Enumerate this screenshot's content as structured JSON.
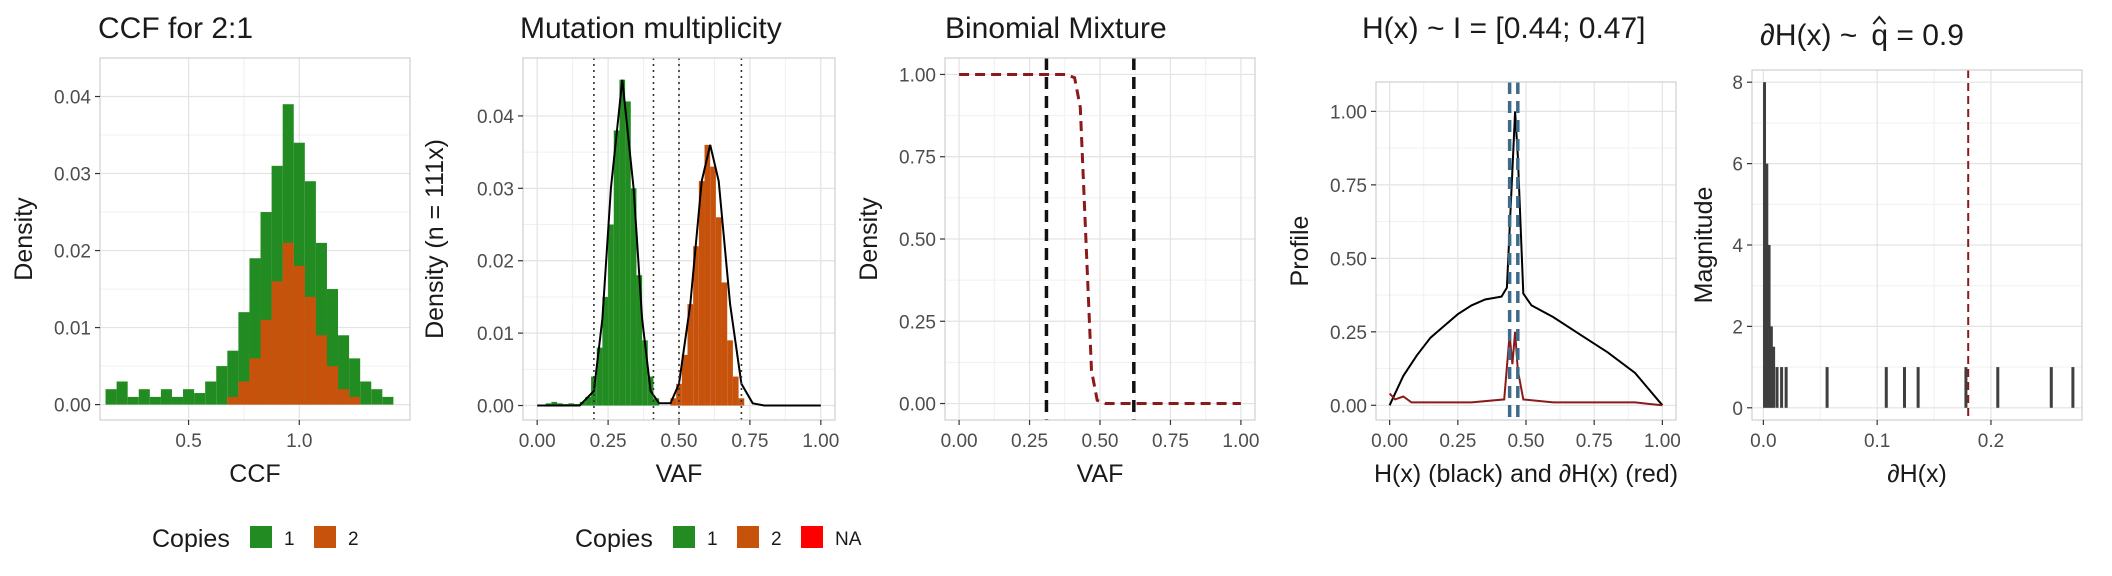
{
  "chart_data": [
    {
      "type": "histogram",
      "title": "CCF for 2:1",
      "xlabel": "CCF",
      "ylabel": "Density",
      "xlim": [
        0.1,
        1.5
      ],
      "ylim": [
        -0.002,
        0.045
      ],
      "xticks": [
        0.5,
        1.0
      ],
      "xtick_labels": [
        "0.5",
        "1.0"
      ],
      "yticks": [
        0,
        0.01,
        0.02,
        0.03,
        0.04
      ],
      "ytick_labels": [
        "0.00",
        "0.01",
        "0.02",
        "0.03",
        "0.04"
      ],
      "grid": true,
      "legend": {
        "title": "Copies",
        "position": "bottom",
        "entries": [
          "1",
          "2"
        ]
      },
      "series": [
        {
          "name": "1",
          "color": "#228B22",
          "bins": [
            {
              "x": 0.15,
              "y": 0.002
            },
            {
              "x": 0.2,
              "y": 0.003
            },
            {
              "x": 0.25,
              "y": 0.001
            },
            {
              "x": 0.3,
              "y": 0.002
            },
            {
              "x": 0.35,
              "y": 0.001
            },
            {
              "x": 0.4,
              "y": 0.002
            },
            {
              "x": 0.45,
              "y": 0.001
            },
            {
              "x": 0.5,
              "y": 0.002
            },
            {
              "x": 0.55,
              "y": 0.0015
            },
            {
              "x": 0.6,
              "y": 0.003
            },
            {
              "x": 0.65,
              "y": 0.005
            },
            {
              "x": 0.7,
              "y": 0.007
            },
            {
              "x": 0.75,
              "y": 0.012
            },
            {
              "x": 0.8,
              "y": 0.019
            },
            {
              "x": 0.85,
              "y": 0.025
            },
            {
              "x": 0.9,
              "y": 0.031
            },
            {
              "x": 0.95,
              "y": 0.039
            },
            {
              "x": 1.0,
              "y": 0.034
            },
            {
              "x": 1.05,
              "y": 0.029
            },
            {
              "x": 1.1,
              "y": 0.021
            },
            {
              "x": 1.15,
              "y": 0.015
            },
            {
              "x": 1.2,
              "y": 0.009
            },
            {
              "x": 1.25,
              "y": 0.006
            },
            {
              "x": 1.3,
              "y": 0.003
            },
            {
              "x": 1.35,
              "y": 0.002
            },
            {
              "x": 1.4,
              "y": 0.001
            }
          ]
        },
        {
          "name": "2",
          "color": "#C6520B",
          "bins": [
            {
              "x": 0.7,
              "y": 0.001
            },
            {
              "x": 0.75,
              "y": 0.003
            },
            {
              "x": 0.8,
              "y": 0.006
            },
            {
              "x": 0.85,
              "y": 0.011
            },
            {
              "x": 0.9,
              "y": 0.016
            },
            {
              "x": 0.95,
              "y": 0.021
            },
            {
              "x": 1.0,
              "y": 0.018
            },
            {
              "x": 1.05,
              "y": 0.014
            },
            {
              "x": 1.1,
              "y": 0.009
            },
            {
              "x": 1.15,
              "y": 0.005
            },
            {
              "x": 1.2,
              "y": 0.002
            },
            {
              "x": 1.25,
              "y": 0.001
            }
          ]
        }
      ]
    },
    {
      "type": "histogram",
      "title": "Mutation multiplicity",
      "xlabel": "VAF",
      "ylabel": "Density (n = 111x)",
      "xlim": [
        -0.05,
        1.05
      ],
      "ylim": [
        -0.002,
        0.048
      ],
      "xticks": [
        0,
        0.25,
        0.5,
        0.75,
        1.0
      ],
      "xtick_labels": [
        "0.00",
        "0.25",
        "0.50",
        "0.75",
        "1.00"
      ],
      "yticks": [
        0,
        0.01,
        0.02,
        0.03,
        0.04
      ],
      "ytick_labels": [
        "0.00",
        "0.01",
        "0.02",
        "0.03",
        "0.04"
      ],
      "grid": true,
      "vlines_dotted": [
        0.2,
        0.41,
        0.5,
        0.72
      ],
      "legend": {
        "title": "Copies",
        "position": "bottom",
        "entries": [
          "1",
          "2",
          "NA"
        ],
        "colors": [
          "#228B22",
          "#C6520B",
          "#FF0000"
        ]
      },
      "series": [
        {
          "name": "1",
          "color": "#228B22",
          "bins": [
            {
              "x": 0.04,
              "y": 0.0003
            },
            {
              "x": 0.06,
              "y": 0.0005
            },
            {
              "x": 0.08,
              "y": 0.0003
            },
            {
              "x": 0.1,
              "y": 0.0002
            },
            {
              "x": 0.12,
              "y": 0.0003
            },
            {
              "x": 0.14,
              "y": 0.0002
            },
            {
              "x": 0.16,
              "y": 0.0005
            },
            {
              "x": 0.18,
              "y": 0.0012
            },
            {
              "x": 0.2,
              "y": 0.004
            },
            {
              "x": 0.22,
              "y": 0.008
            },
            {
              "x": 0.24,
              "y": 0.015
            },
            {
              "x": 0.26,
              "y": 0.025
            },
            {
              "x": 0.28,
              "y": 0.038
            },
            {
              "x": 0.3,
              "y": 0.045
            },
            {
              "x": 0.32,
              "y": 0.042
            },
            {
              "x": 0.34,
              "y": 0.03
            },
            {
              "x": 0.36,
              "y": 0.018
            },
            {
              "x": 0.38,
              "y": 0.009
            },
            {
              "x": 0.4,
              "y": 0.004
            },
            {
              "x": 0.42,
              "y": 0.001
            }
          ]
        },
        {
          "name": "2",
          "color": "#C6520B",
          "bins": [
            {
              "x": 0.48,
              "y": 0.001
            },
            {
              "x": 0.5,
              "y": 0.003
            },
            {
              "x": 0.52,
              "y": 0.007
            },
            {
              "x": 0.54,
              "y": 0.014
            },
            {
              "x": 0.56,
              "y": 0.022
            },
            {
              "x": 0.58,
              "y": 0.031
            },
            {
              "x": 0.6,
              "y": 0.036
            },
            {
              "x": 0.62,
              "y": 0.033
            },
            {
              "x": 0.64,
              "y": 0.026
            },
            {
              "x": 0.66,
              "y": 0.017
            },
            {
              "x": 0.68,
              "y": 0.009
            },
            {
              "x": 0.7,
              "y": 0.004
            },
            {
              "x": 0.72,
              "y": 0.001
            }
          ]
        }
      ],
      "curve": {
        "color": "#000000",
        "points": [
          [
            0.0,
            0.0
          ],
          [
            0.15,
            0.0
          ],
          [
            0.2,
            0.002
          ],
          [
            0.23,
            0.012
          ],
          [
            0.26,
            0.03
          ],
          [
            0.3,
            0.045
          ],
          [
            0.34,
            0.03
          ],
          [
            0.37,
            0.012
          ],
          [
            0.4,
            0.002
          ],
          [
            0.43,
            0.0003
          ],
          [
            0.47,
            0.0003
          ],
          [
            0.5,
            0.003
          ],
          [
            0.54,
            0.014
          ],
          [
            0.58,
            0.031
          ],
          [
            0.61,
            0.036
          ],
          [
            0.64,
            0.031
          ],
          [
            0.68,
            0.014
          ],
          [
            0.72,
            0.003
          ],
          [
            0.76,
            0.0003
          ],
          [
            0.8,
            0.0
          ],
          [
            1.0,
            0.0
          ]
        ]
      }
    },
    {
      "type": "line",
      "title": "Binomial Mixture",
      "xlabel": "VAF",
      "ylabel": "Density",
      "xlim": [
        -0.05,
        1.05
      ],
      "ylim": [
        -0.05,
        1.05
      ],
      "xticks": [
        0,
        0.25,
        0.5,
        0.75,
        1.0
      ],
      "xtick_labels": [
        "0.00",
        "0.25",
        "0.50",
        "0.75",
        "1.00"
      ],
      "yticks": [
        0,
        0.25,
        0.5,
        0.75,
        1.0
      ],
      "ytick_labels": [
        "0.00",
        "0.25",
        "0.50",
        "0.75",
        "1.00"
      ],
      "grid": true,
      "vlines_dashed": [
        0.31,
        0.62
      ],
      "curve": {
        "color": "#8B1A1A",
        "dashed": true,
        "points": [
          [
            0.0,
            1.0
          ],
          [
            0.3,
            1.0
          ],
          [
            0.38,
            1.0
          ],
          [
            0.41,
            0.99
          ],
          [
            0.43,
            0.9
          ],
          [
            0.45,
            0.5
          ],
          [
            0.47,
            0.1
          ],
          [
            0.49,
            0.01
          ],
          [
            0.52,
            0.0
          ],
          [
            1.0,
            0.0
          ]
        ]
      }
    },
    {
      "type": "line",
      "title": "H(x) ~ I = [0.44; 0.47]",
      "xlabel": "H(x) (black) and ∂H(x) (red)",
      "ylabel": "Profile",
      "xlim": [
        -0.05,
        1.05
      ],
      "ylim": [
        -0.05,
        1.1
      ],
      "xticks": [
        0,
        0.25,
        0.5,
        0.75,
        1.0
      ],
      "xtick_labels": [
        "0.00",
        "0.25",
        "0.50",
        "0.75",
        "1.00"
      ],
      "yticks": [
        0,
        0.25,
        0.5,
        0.75,
        1.0
      ],
      "ytick_labels": [
        "0.00",
        "0.25",
        "0.50",
        "0.75",
        "1.00"
      ],
      "grid": true,
      "vlines_dashed": [
        0.44,
        0.47
      ],
      "vline_color": "#3E6B8A",
      "series": [
        {
          "name": "H(x)",
          "color": "#000000",
          "points": [
            [
              0.0,
              0.0
            ],
            [
              0.05,
              0.1
            ],
            [
              0.1,
              0.17
            ],
            [
              0.15,
              0.23
            ],
            [
              0.2,
              0.27
            ],
            [
              0.25,
              0.31
            ],
            [
              0.3,
              0.34
            ],
            [
              0.35,
              0.36
            ],
            [
              0.41,
              0.37
            ],
            [
              0.43,
              0.4
            ],
            [
              0.45,
              0.8
            ],
            [
              0.46,
              1.0
            ],
            [
              0.47,
              0.85
            ],
            [
              0.49,
              0.38
            ],
            [
              0.52,
              0.34
            ],
            [
              0.6,
              0.3
            ],
            [
              0.7,
              0.24
            ],
            [
              0.8,
              0.18
            ],
            [
              0.9,
              0.11
            ],
            [
              1.0,
              0.0
            ]
          ]
        },
        {
          "name": "∂H(x)",
          "color": "#8B1A1A",
          "points": [
            [
              0.0,
              0.04
            ],
            [
              0.02,
              0.02
            ],
            [
              0.05,
              0.03
            ],
            [
              0.08,
              0.01
            ],
            [
              0.15,
              0.01
            ],
            [
              0.3,
              0.01
            ],
            [
              0.42,
              0.02
            ],
            [
              0.44,
              0.24
            ],
            [
              0.45,
              0.14
            ],
            [
              0.46,
              0.25
            ],
            [
              0.47,
              0.12
            ],
            [
              0.49,
              0.02
            ],
            [
              0.6,
              0.01
            ],
            [
              0.8,
              0.01
            ],
            [
              0.9,
              0.01
            ],
            [
              1.0,
              0.0
            ]
          ]
        }
      ]
    },
    {
      "type": "histogram",
      "title": "∂H(x) ~",
      "title_suffix": "q = 0.9",
      "xlabel": "∂H(x)",
      "ylabel": "Magnitude",
      "xlim": [
        -0.01,
        0.28
      ],
      "ylim": [
        -0.3,
        8.3
      ],
      "xticks": [
        0,
        0.1,
        0.2
      ],
      "xtick_labels": [
        "0.0",
        "0.1",
        "0.2"
      ],
      "yticks": [
        0,
        2,
        4,
        6,
        8
      ],
      "ytick_labels": [
        "0",
        "2",
        "4",
        "6",
        "8"
      ],
      "grid": true,
      "vline_dashed": 0.18,
      "vline_color": "#8B1A1A",
      "bars": [
        {
          "x": 0.001,
          "y": 8
        },
        {
          "x": 0.003,
          "y": 6
        },
        {
          "x": 0.005,
          "y": 4
        },
        {
          "x": 0.007,
          "y": 2
        },
        {
          "x": 0.009,
          "y": 1.5
        },
        {
          "x": 0.012,
          "y": 1
        },
        {
          "x": 0.016,
          "y": 1
        },
        {
          "x": 0.02,
          "y": 1
        },
        {
          "x": 0.056,
          "y": 1
        },
        {
          "x": 0.108,
          "y": 1
        },
        {
          "x": 0.124,
          "y": 1
        },
        {
          "x": 0.136,
          "y": 1
        },
        {
          "x": 0.178,
          "y": 1
        },
        {
          "x": 0.206,
          "y": 1
        },
        {
          "x": 0.253,
          "y": 1
        },
        {
          "x": 0.272,
          "y": 1
        }
      ],
      "bar_color": "#3F3F3F"
    }
  ]
}
